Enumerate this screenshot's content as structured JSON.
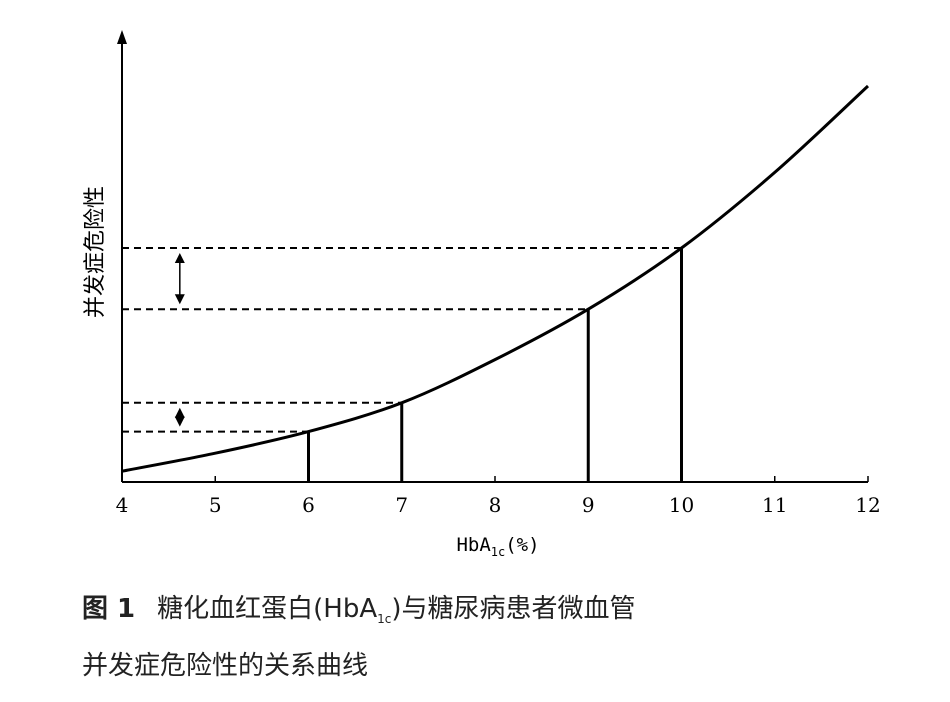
{
  "chart_data": {
    "type": "line",
    "xlabel": {
      "main": "HbA",
      "sub": "1c",
      "unit": "(%)"
    },
    "ylabel": "并发症危险性",
    "xlim": [
      4,
      12
    ],
    "x_ticks": [
      "4",
      "5",
      "6",
      "7",
      "8",
      "9",
      "10",
      "11",
      "12"
    ],
    "y_ticks": [],
    "grid": false,
    "curve": {
      "x": [
        4,
        5,
        6,
        7,
        8,
        9,
        10,
        11,
        12
      ],
      "y": [
        0.03,
        0.08,
        0.14,
        0.22,
        0.34,
        0.48,
        0.65,
        0.86,
        1.1
      ]
    },
    "marked_points": [
      {
        "x": 6,
        "y": 0.14
      },
      {
        "x": 7,
        "y": 0.22
      },
      {
        "x": 9,
        "y": 0.48
      },
      {
        "x": 10,
        "y": 0.65
      }
    ],
    "risk_difference_arrows": [
      {
        "from_x": 6,
        "to_x": 7
      },
      {
        "from_x": 9,
        "to_x": 10
      }
    ]
  },
  "caption": {
    "figure_label": "图 1",
    "line1_before": "糖化血红蛋白(HbA",
    "line1_sub": "1c",
    "line1_after": ")与糖尿病患者微血管",
    "line2": "并发症危险性的关系曲线"
  },
  "colors": {
    "ink": "#000000",
    "caption_text": "#222222"
  }
}
